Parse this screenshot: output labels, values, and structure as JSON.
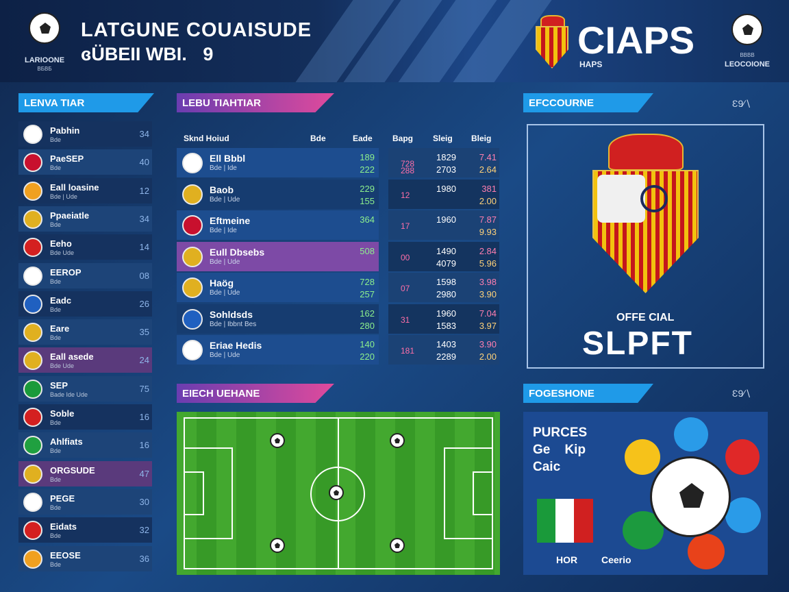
{
  "header": {
    "title_line1": "LATGUNE COUAISUDE",
    "title_line2": "ɞÜBEII WBI.",
    "title_number": "9",
    "left_logo_caption": "LARIOONE",
    "left_logo_sub": "ВБВБ",
    "right_title": "CIAPS",
    "right_sub": "HAPS",
    "right_logo_caption": "LEOCOIONE",
    "right_logo_sub": "BBBB"
  },
  "left_panel": {
    "banner": "LENVA TIAR",
    "teams": [
      {
        "name": "Pabhin",
        "sub": "Bde",
        "num": "34",
        "badge": "star-badge-icon",
        "color": "#ffffff"
      },
      {
        "name": "PaeSEP",
        "sub": "Bde",
        "num": "40",
        "badge": "union-flag-icon",
        "color": "#c8102e"
      },
      {
        "name": "Eall loasine",
        "sub": "Bde | Ude",
        "num": "12",
        "badge": "orange-crest-icon",
        "color": "#f0a020"
      },
      {
        "name": "Ppaeiatle",
        "sub": "Bde",
        "num": "34",
        "badge": "striped-crest-icon",
        "color": "#e0b020"
      },
      {
        "name": "Eeho",
        "sub": "Bde Ude",
        "num": "14",
        "badge": "red-roundel-icon",
        "color": "#d42020"
      },
      {
        "name": "EEROP",
        "sub": "Bde",
        "num": "08",
        "badge": "ball-icon",
        "color": "#ffffff"
      },
      {
        "name": "Eadc",
        "sub": "Bde",
        "num": "26",
        "badge": "blue-shield-icon",
        "color": "#2060c0"
      },
      {
        "name": "Eare",
        "sub": "Bde",
        "num": "35",
        "badge": "striped-crest-icon",
        "color": "#e0b020"
      },
      {
        "name": "Eall asede",
        "sub": "Bde Ude",
        "num": "24",
        "badge": "striped-crest-icon",
        "color": "#e0b020"
      },
      {
        "name": "SEP",
        "sub": "Bade Ide Ude",
        "num": "75",
        "badge": "italy-flag-icon",
        "color": "#1a9a3a"
      },
      {
        "name": "Soble",
        "sub": "Bde",
        "num": "16",
        "badge": "rs-flag-icon",
        "color": "#d42020"
      },
      {
        "name": "Ahlfiats",
        "sub": "Bde",
        "num": "16",
        "badge": "green-shield-icon",
        "color": "#20a040"
      },
      {
        "name": "ORGSUDE",
        "sub": "Bde",
        "num": "47",
        "badge": "striped-crest-icon",
        "color": "#e0b020"
      },
      {
        "name": "PEGE",
        "sub": "Bde",
        "num": "30",
        "badge": "ball-icon",
        "color": "#ffffff"
      },
      {
        "name": "Eidats",
        "sub": "Bde",
        "num": "32",
        "badge": "red-roundel-icon",
        "color": "#d42020"
      },
      {
        "name": "EEOSE",
        "sub": "Bde",
        "num": "36",
        "badge": "orange-crest-icon",
        "color": "#f0a020"
      }
    ]
  },
  "stats": {
    "banner": "LEBU TIAHTIAR",
    "col_headers": [
      "Sknd Hoiud",
      "Bde",
      "Eade",
      "Bapg",
      "Sleig",
      "Bleig"
    ],
    "rows": [
      {
        "name": "Ell Bbbl",
        "sub": "Bde | Ide",
        "v1": "189",
        "v2": "222",
        "c1": "728",
        "c1b": "288",
        "c2a": "1829",
        "c2b": "2703",
        "c3a": "7.41",
        "c3b": "2.64",
        "badge": "ball-icon",
        "color": "#ffffff"
      },
      {
        "name": "Baob",
        "sub": "Bde | Ude",
        "v1": "229",
        "v2": "155",
        "c1": "12",
        "c1b": "",
        "c2a": "1980",
        "c2b": "",
        "c3a": "381",
        "c3b": "2.00",
        "badge": "striped-crest-icon",
        "color": "#e0b020"
      },
      {
        "name": "Eftmeine",
        "sub": "Bde | Ide",
        "v1": "364",
        "v2": "",
        "c1": "17",
        "c1b": "",
        "c2a": "1960",
        "c2b": "",
        "c3a": "7.87",
        "c3b": "9.93",
        "badge": "union-flag-icon",
        "color": "#c8102e"
      },
      {
        "name": "Eull Dbsebs",
        "sub": "Bde | Ude",
        "v1": "508",
        "v2": "",
        "c1": "00",
        "c1b": "",
        "c2a": "1490",
        "c2b": "4079",
        "c3a": "2.84",
        "c3b": "5.96",
        "badge": "striped-crest-icon",
        "color": "#e0b020"
      },
      {
        "name": "Haög",
        "sub": "Bde | Ude",
        "v1": "728",
        "v2": "257",
        "c1": "07",
        "c1b": "",
        "c2a": "1598",
        "c2b": "2980",
        "c3a": "3.98",
        "c3b": "3.90",
        "badge": "striped-crest-icon",
        "color": "#e0b020"
      },
      {
        "name": "Sohldsds",
        "sub": "Bde | Ibbnt Bes",
        "v1": "162",
        "v2": "280",
        "c1": "31",
        "c1b": "",
        "c2a": "1960",
        "c2b": "1583",
        "c3a": "7.04",
        "c3b": "3.97",
        "badge": "blue-swirl-icon",
        "color": "#2060c0"
      },
      {
        "name": "Eriae Hedis",
        "sub": "Bde | Ude",
        "v1": "140",
        "v2": "220",
        "c1": "181",
        "c1b": "",
        "c2a": "1403",
        "c2b": "2289",
        "c3a": "3.90",
        "c3b": "2.00",
        "badge": "ball-icon",
        "color": "#ffffff"
      }
    ]
  },
  "crest_panel": {
    "banner": "EFCCOURNE",
    "banner_icons": "Ɛ9∕∖",
    "caption_small": "OFFE CIAL",
    "caption_big": "SLPFT"
  },
  "pitch_panel": {
    "banner": "EIECH UEHANE"
  },
  "info_panel": {
    "banner": "FOGESHONE",
    "banner_icons": "Ɛ9∕∖",
    "line1": "PURCES",
    "line2": "Ge    Kip",
    "line3": "Caic",
    "footer_left": "HOR",
    "footer_right": "Ceerio"
  },
  "colors": {
    "accent_blue": "#1f9ae8",
    "accent_pink": "#e04a9c",
    "bg_navy": "#173a6e",
    "highlight_purple": "#7d4aa6",
    "value_green": "#8df08d"
  }
}
